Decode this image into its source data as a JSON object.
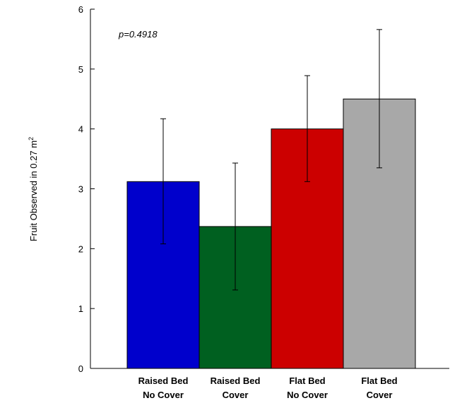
{
  "chart_data": {
    "type": "bar",
    "ylabel": "Fruit Observed in 0.27 m",
    "ylabel_superscript": "2",
    "annotation": "p=0.4918",
    "ylim": [
      0,
      6
    ],
    "yticks": [
      "0",
      "1",
      "2",
      "3",
      "4",
      "5",
      "6"
    ],
    "categories": [
      {
        "line1": "Raised Bed",
        "line2": "No Cover"
      },
      {
        "line1": "Raised Bed",
        "line2": "Cover"
      },
      {
        "line1": "Flat Bed",
        "line2": "No Cover"
      },
      {
        "line1": "Flat Bed",
        "line2": "Cover"
      }
    ],
    "values": [
      3.12,
      2.37,
      4.0,
      4.5
    ],
    "error_low": [
      2.08,
      1.31,
      3.12,
      3.35
    ],
    "error_high": [
      4.17,
      3.43,
      4.89,
      5.66
    ],
    "colors": [
      "#0000cc",
      "#006020",
      "#cc0000",
      "#a8a8a8"
    ],
    "grid": false
  }
}
